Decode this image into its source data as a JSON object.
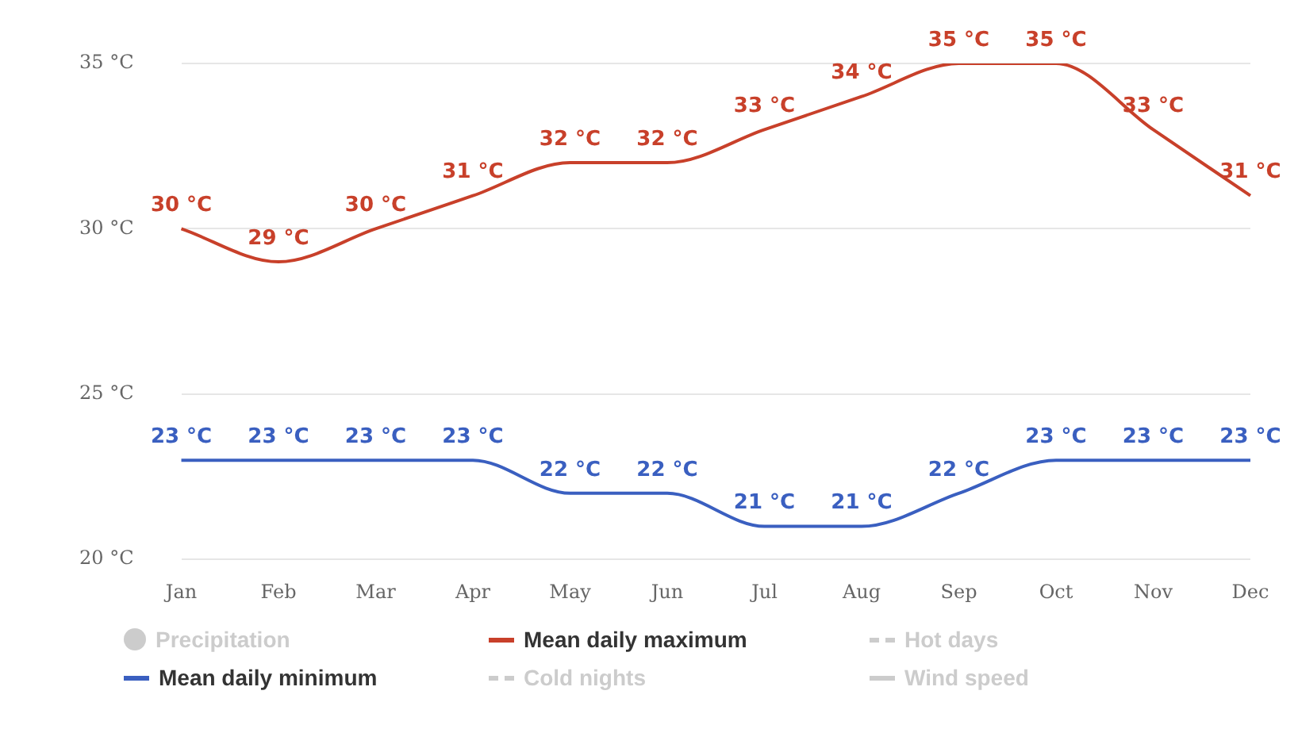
{
  "chart_data": {
    "type": "line",
    "categories": [
      "Jan",
      "Feb",
      "Mar",
      "Apr",
      "May",
      "Jun",
      "Jul",
      "Aug",
      "Sep",
      "Oct",
      "Nov",
      "Dec"
    ],
    "ylim": [
      20,
      35
    ],
    "yticks": [
      {
        "value": 20,
        "label": "20 °C"
      },
      {
        "value": 25,
        "label": "25 °C"
      },
      {
        "value": 30,
        "label": "30 °C"
      },
      {
        "value": 35,
        "label": "35 °C"
      }
    ],
    "grid": "y",
    "legend": "bottom",
    "marker": "none",
    "series": [
      {
        "name": "Precipitation",
        "type": "bar",
        "color": "#cccccc",
        "values": [
          null,
          null,
          null,
          null,
          null,
          null,
          null,
          null,
          null,
          null,
          null,
          null
        ]
      },
      {
        "name": "Mean daily maximum",
        "color": "#c8402a",
        "values": [
          30,
          29,
          30,
          31,
          32,
          32,
          33,
          34,
          35,
          35,
          33,
          31
        ],
        "value_labels": [
          "30 °C",
          "29 °C",
          "30 °C",
          "31 °C",
          "32 °C",
          "32 °C",
          "33 °C",
          "34 °C",
          "35 °C",
          "35 °C",
          "33 °C",
          "31 °C"
        ]
      },
      {
        "name": "Hot days",
        "color": "#cccccc",
        "line_style": "dashed",
        "values": [
          null,
          null,
          null,
          null,
          null,
          null,
          null,
          null,
          null,
          null,
          null,
          null
        ]
      },
      {
        "name": "Mean daily minimum",
        "color": "#3a5fc0",
        "values": [
          23,
          23,
          23,
          23,
          22,
          22,
          21,
          21,
          22,
          23,
          23,
          23
        ],
        "value_labels": [
          "23 °C",
          "23 °C",
          "23 °C",
          "23 °C",
          "22 °C",
          "22 °C",
          "21 °C",
          "21 °C",
          "22 °C",
          "23 °C",
          "23 °C",
          "23 °C"
        ]
      },
      {
        "name": "Cold nights",
        "color": "#cccccc",
        "line_style": "dashed",
        "values": [
          null,
          null,
          null,
          null,
          null,
          null,
          null,
          null,
          null,
          null,
          null,
          null
        ]
      },
      {
        "name": "Wind speed",
        "color": "#cccccc",
        "values": [
          null,
          null,
          null,
          null,
          null,
          null,
          null,
          null,
          null,
          null,
          null,
          null
        ]
      }
    ]
  }
}
